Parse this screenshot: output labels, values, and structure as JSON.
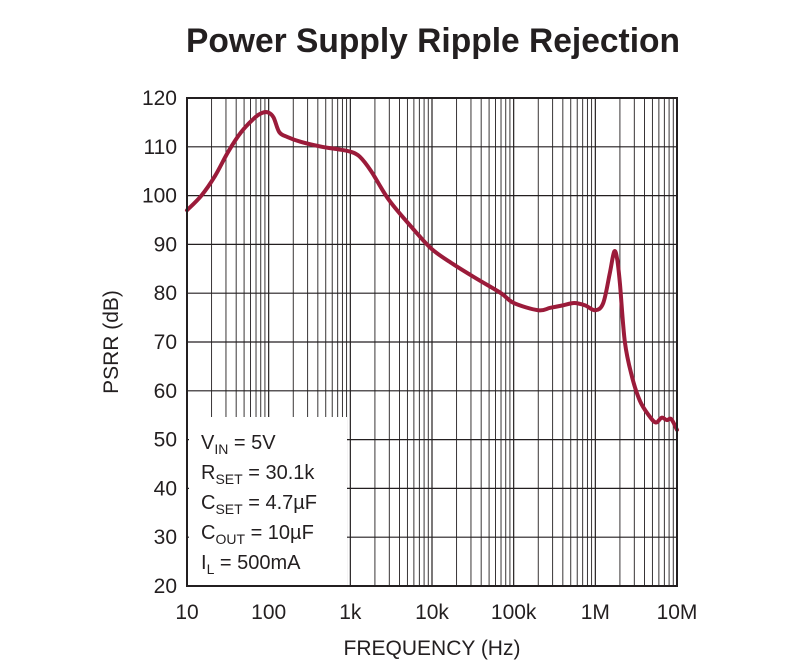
{
  "chart_data": {
    "type": "line",
    "title": "Power Supply Ripple Rejection",
    "xlabel": "FREQUENCY (Hz)",
    "ylabel": "PSRR (dB)",
    "x_scale": "log",
    "xlim": [
      10,
      10000000
    ],
    "ylim": [
      20,
      120
    ],
    "grid": true,
    "x_ticks": [
      10,
      100,
      1000,
      10000,
      100000,
      1000000,
      10000000
    ],
    "x_tick_labels": [
      "10",
      "100",
      "1k",
      "10k",
      "100k",
      "1M",
      "10M"
    ],
    "y_ticks": [
      20,
      30,
      40,
      50,
      60,
      70,
      80,
      90,
      100,
      110,
      120
    ],
    "y_tick_labels": [
      "20",
      "30",
      "40",
      "50",
      "60",
      "70",
      "80",
      "90",
      "100",
      "110",
      "120"
    ],
    "line_color": "#9b1b3a",
    "series": [
      {
        "x": [
          10,
          15,
          22,
          32,
          46,
          68,
          85,
          100,
          115,
          135,
          170,
          250,
          450,
          700,
          1000,
          1300,
          1800,
          3000,
          6000,
          10000,
          18000,
          35000,
          70000,
          100000,
          200000,
          280000,
          400000,
          550000,
          750000,
          1000000,
          1250000,
          1500000,
          1700000,
          1850000,
          2000000,
          2300000,
          2800000,
          3500000,
          4500000,
          5500000,
          6500000,
          7500000,
          8500000,
          10000000
        ],
        "y": [
          97,
          100,
          104,
          109,
          113,
          116,
          117,
          117,
          116,
          113,
          112,
          111,
          110,
          109.5,
          109,
          108,
          105,
          99,
          93,
          89,
          86,
          83,
          80,
          78,
          76.5,
          77,
          77.5,
          78,
          77.5,
          76.5,
          78,
          84,
          88.5,
          87,
          82,
          70,
          63,
          58,
          55,
          53.5,
          54.5,
          54,
          54.2,
          52
        ]
      }
    ],
    "annotation": {
      "vin": {
        "main": "V",
        "sub": "IN",
        "rest": " = 5V"
      },
      "rset": {
        "main": "R",
        "sub": "SET",
        "rest": " = 30.1k"
      },
      "cset": {
        "main": "C",
        "sub": "SET",
        "rest": " = 4.7µF"
      },
      "cout": {
        "main": "C",
        "sub": "OUT",
        "rest": " = 10µF"
      },
      "il": {
        "main": "I",
        "sub": "L",
        "rest": " = 500mA"
      }
    }
  }
}
